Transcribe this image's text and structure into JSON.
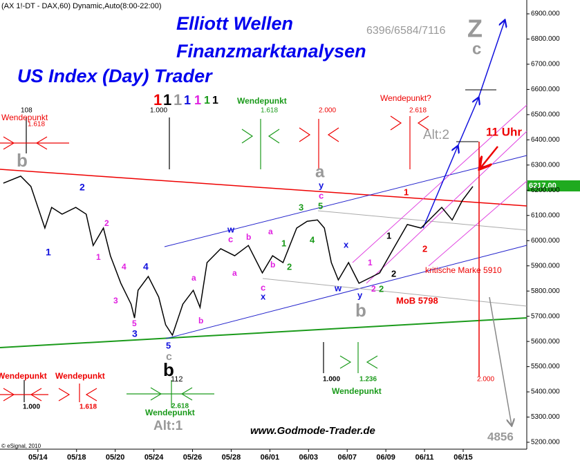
{
  "chart_data": {
    "type": "line",
    "header": "(AX 1!-DT - DAX,60) Dynamic,Auto(8:00-22:00)",
    "titles": [
      "Elliott Wellen",
      "Finanzmarktanalysen",
      "US Index (Day) Trader"
    ],
    "x": [
      -1.79,
      -0.89,
      -0.36,
      0.36,
      0.71,
      1.25,
      1.96,
      2.5,
      2.86,
      3.39,
      3.75,
      4.29,
      4.82,
      5,
      5.18,
      5.71,
      6.25,
      6.61,
      6.96,
      7.5,
      8.04,
      8.39,
      8.75,
      9.46,
      10.18,
      10.89,
      11.61,
      12.14,
      12.68,
      13.39,
      13.93,
      14.46,
      14.82,
      15.18,
      15.54,
      16.07,
      16.61,
      17.32,
      17.68,
      18.39,
      19.11,
      19.82,
      20.36,
      20.89,
      21.43,
      21.96,
      22.5
    ],
    "values": [
      6228,
      6256,
      6215,
      6050,
      6132,
      6105,
      6132,
      6105,
      5981,
      6050,
      5940,
      5831,
      5748,
      5693,
      5803,
      5858,
      5776,
      5666,
      5625,
      5748,
      5803,
      5735,
      5913,
      5968,
      5940,
      5981,
      5872,
      5940,
      5913,
      6050,
      6077,
      6082,
      6050,
      5913,
      5844,
      5913,
      5831,
      5858,
      5872,
      5968,
      6064,
      6050,
      6091,
      6132,
      6082,
      6160,
      6215
    ],
    "color": "#000000",
    "xlim": [
      -1.96,
      25.29
    ],
    "xticks": [
      {
        "value": 0,
        "label": "05/14"
      },
      {
        "value": 2,
        "label": "05/18"
      },
      {
        "value": 4,
        "label": "05/20"
      },
      {
        "value": 6,
        "label": "05/24"
      },
      {
        "value": 8,
        "label": "05/26"
      },
      {
        "value": 10,
        "label": "05/28"
      },
      {
        "value": 12,
        "label": "06/01"
      },
      {
        "value": 14,
        "label": "06/03"
      },
      {
        "value": 16,
        "label": "06/07"
      },
      {
        "value": 18,
        "label": "06/09"
      },
      {
        "value": 20,
        "label": "06/11"
      },
      {
        "value": 22,
        "label": "06/15"
      }
    ],
    "ylim": [
      5200,
      6900
    ],
    "yticks": [
      {
        "value": 5200,
        "label": "5200.000"
      },
      {
        "value": 5300,
        "label": "5300.000"
      },
      {
        "value": 5400,
        "label": "5400.000"
      },
      {
        "value": 5500,
        "label": "5500.000"
      },
      {
        "value": 5600,
        "label": "5600.000"
      },
      {
        "value": 5700,
        "label": "5700.000"
      },
      {
        "value": 5800,
        "label": "5800.000"
      },
      {
        "value": 5900,
        "label": "5900.000"
      },
      {
        "value": 6000,
        "label": "6000.000"
      },
      {
        "value": 6100,
        "label": "6100.000"
      },
      {
        "value": 6200,
        "label": "6200.000"
      },
      {
        "value": 6300,
        "label": "6300.000"
      },
      {
        "value": 6400,
        "label": "6400.000"
      },
      {
        "value": 6500,
        "label": "6500.000"
      },
      {
        "value": 6600,
        "label": "6600.000"
      },
      {
        "value": 6700,
        "label": "6700.000"
      },
      {
        "value": 6800,
        "label": "6800.000"
      },
      {
        "value": 6900,
        "label": "6900.000"
      }
    ],
    "annotations": [
      "6396/6584/7116",
      "Z",
      "c",
      "1",
      "1",
      "1",
      "1",
      "1",
      "1",
      "1",
      "108",
      "Wendepunkt",
      "1.618",
      "1.000",
      "Wendepunkt",
      "1.618",
      "2.000",
      "Wendepunkt?",
      "2.618",
      "b",
      "a",
      "y",
      "c",
      "5",
      "Alt:2",
      "11 Uhr",
      "1",
      "2",
      "1",
      "2",
      "3",
      "4",
      "4",
      "5",
      "3",
      "a",
      "b",
      "w",
      "c",
      "b",
      "a",
      "a",
      "b",
      "1",
      "2",
      "3",
      "4",
      "c",
      "x",
      "x",
      "w",
      "y",
      "1",
      "2",
      "2",
      "1",
      "2",
      "1",
      "2",
      "5",
      "c",
      "kritische Marke 5910",
      "MoB 5798",
      "b",
      "b",
      "112",
      "Wendepunkt",
      "Wendepunkt",
      "1.000",
      "1.618",
      "1.000",
      "1.236",
      "Wendepunkt",
      "2.618",
      "Wendepunkt",
      "Alt:1",
      "2.000",
      "www.Godmode-Trader.de",
      "4856",
      "© eSignal, 2010"
    ],
    "last_price_label": "6217.00"
  }
}
